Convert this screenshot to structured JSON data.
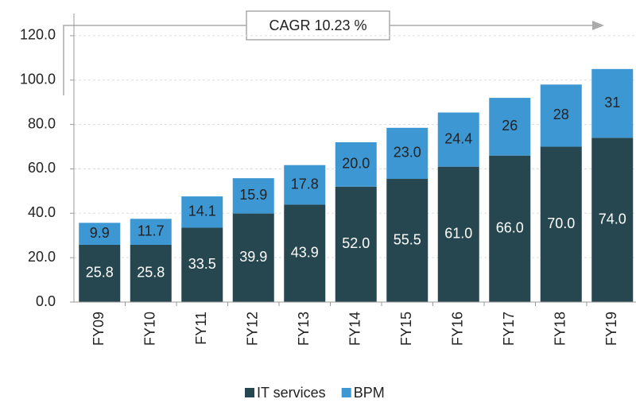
{
  "chart_data": {
    "type": "stacked_bar",
    "annotation": "CAGR 10.23 %",
    "categories": [
      "FY09",
      "FY10",
      "FY11",
      "FY12",
      "FY13",
      "FY14",
      "FY15",
      "FY16",
      "FY17",
      "FY18",
      "FY19"
    ],
    "series": [
      {
        "name": "IT services",
        "color": "#26474f",
        "values": [
          25.8,
          25.8,
          33.5,
          39.9,
          43.9,
          52.0,
          55.5,
          61.0,
          66.0,
          70.0,
          74.0
        ],
        "value_labels": [
          "25.8",
          "25.8",
          "33.5",
          "39.9",
          "43.9",
          "52.0",
          "55.5",
          "61.0",
          "66.0",
          "70.0",
          "74.0"
        ]
      },
      {
        "name": "BPM",
        "color": "#3d97d3",
        "values": [
          9.9,
          11.7,
          14.1,
          15.9,
          17.8,
          20.0,
          23.0,
          24.4,
          26,
          28,
          31
        ],
        "value_labels": [
          "9.9",
          "11.7",
          "14.1",
          "15.9",
          "17.8",
          "20.0",
          "23.0",
          "24.4",
          "26",
          "28",
          "31"
        ]
      }
    ],
    "ylim": [
      0,
      130
    ],
    "yticks": [
      {
        "value": 0,
        "label": "0.0"
      },
      {
        "value": 20,
        "label": "20.0"
      },
      {
        "value": 40,
        "label": "40.0"
      },
      {
        "value": 60,
        "label": "60.0"
      },
      {
        "value": 80,
        "label": "80.0"
      },
      {
        "value": 100,
        "label": "100.0"
      },
      {
        "value": 120,
        "label": "120.0"
      }
    ],
    "grid": true,
    "legend": "bottom"
  }
}
